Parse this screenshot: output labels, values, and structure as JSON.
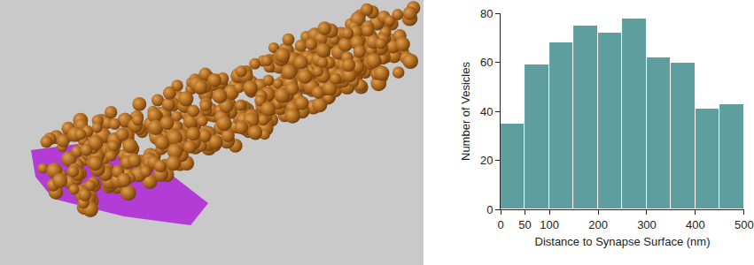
{
  "chart_data": {
    "type": "histogram",
    "bins": [
      0,
      50,
      100,
      150,
      200,
      250,
      300,
      350,
      400,
      450,
      500
    ],
    "values": [
      35,
      59,
      68,
      75,
      72,
      78,
      62,
      60,
      41,
      43
    ],
    "color": "#5f9e9e",
    "xlabel": "Distance to Synapse Surface (nm)",
    "ylabel": "Number of Vesicles",
    "xlim": [
      0,
      500
    ],
    "xticks": [
      0,
      50,
      100,
      200,
      300,
      400,
      500
    ],
    "ylim": [
      0,
      80
    ],
    "yticks": [
      0,
      20,
      40,
      60,
      80
    ],
    "grid": false
  }
}
